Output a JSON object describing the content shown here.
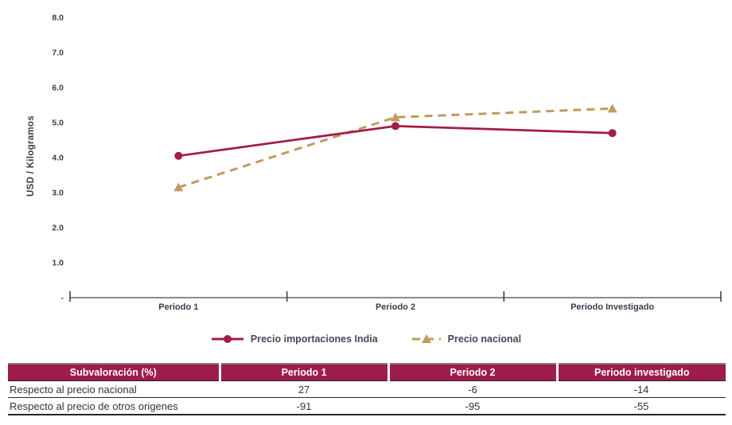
{
  "chart_data": {
    "type": "line",
    "title": "",
    "categories": [
      "Periodo 1",
      "Periodo 2",
      "Periodo Investigado"
    ],
    "series": [
      {
        "name": "Precio importaciones India",
        "values": [
          4.05,
          4.9,
          4.7
        ],
        "color": "#a21c4b",
        "marker": "circle",
        "line_style": "solid"
      },
      {
        "name": "Precio nacional",
        "values": [
          3.15,
          5.15,
          5.4
        ],
        "color": "#c29a5f",
        "marker": "triangle",
        "line_style": "dashed"
      }
    ],
    "xlabel": "",
    "ylabel": "USD / Kilogramos",
    "ylim": [
      0,
      8
    ],
    "yticks": [
      {
        "value": 8,
        "label": "8.0"
      },
      {
        "value": 7,
        "label": "7.0"
      },
      {
        "value": 6,
        "label": "6.0"
      },
      {
        "value": 5,
        "label": "5.0"
      },
      {
        "value": 4,
        "label": "4.0"
      },
      {
        "value": 3,
        "label": "3.0"
      },
      {
        "value": 2,
        "label": "2.0"
      },
      {
        "value": 1,
        "label": "1.0"
      },
      {
        "value": 0,
        "label": "-"
      }
    ],
    "grid": false,
    "legend_position": "bottom"
  },
  "table": {
    "title_header": "Subvaloración (%)",
    "columns": [
      "Periodo 1",
      "Periodo 2",
      "Periodo investigado"
    ],
    "rows": [
      {
        "label": "Respecto al precio nacional",
        "values": [
          "27",
          "-6",
          "-14"
        ]
      },
      {
        "label": "Respecto al precio de otros origenes",
        "values": [
          "-91",
          "-95",
          "-55"
        ]
      }
    ]
  },
  "colors": {
    "series_india": "#a21c4b",
    "series_nacional": "#c29a5f",
    "table_header_bg": "#9e1c4c",
    "axis_line": "#8c8c8c",
    "tick_mark": "#404040",
    "chart_text": "#3c3c4c",
    "legend_text": "#47475a"
  }
}
